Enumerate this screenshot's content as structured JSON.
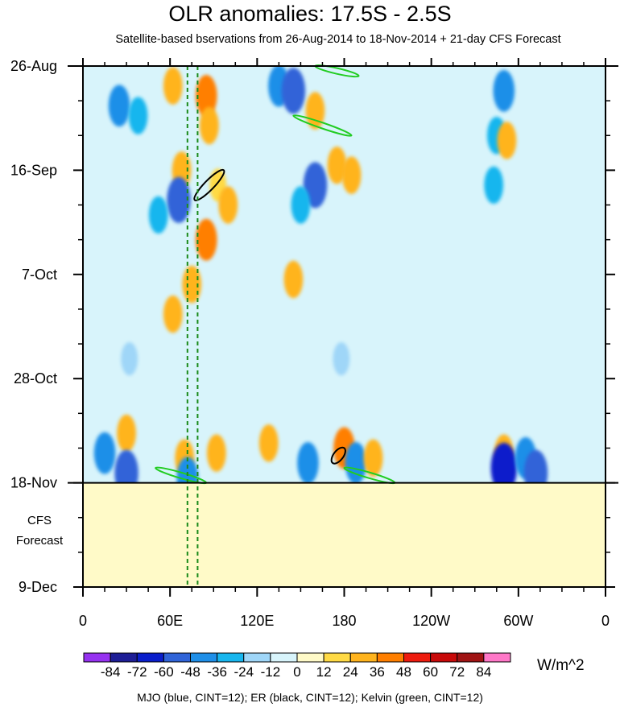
{
  "chart_data": {
    "type": "heatmap",
    "title": "OLR anomalies: 17.5S - 2.5S",
    "subtitle": "Satellite-based bservations from 26-Aug-2014 to 18-Nov-2014 + 21-day CFS Forecast",
    "x_tick_labels": [
      "0",
      "60E",
      "120E",
      "180",
      "120W",
      "60W",
      "0"
    ],
    "x_ticks_deg": [
      0,
      60,
      120,
      180,
      240,
      300,
      360
    ],
    "xlim": [
      0,
      360
    ],
    "y_tick_labels": [
      "26-Aug",
      "16-Sep",
      "7-Oct",
      "28-Oct",
      "18-Nov",
      "9-Dec"
    ],
    "y_ticks_day": [
      0,
      21,
      42,
      63,
      84,
      105
    ],
    "ylim": [
      0,
      105
    ],
    "observation_end_day": 84,
    "forecast_label_lines": [
      "CFS",
      "Forecast"
    ],
    "reference_lines_deg": [
      72,
      79
    ],
    "colorbar": {
      "levels": [
        "-84",
        "-72",
        "-60",
        "-48",
        "-36",
        "-24",
        "-12",
        "0",
        "12",
        "24",
        "36",
        "48",
        "60",
        "72",
        "84"
      ],
      "colors": [
        "#9632f0",
        "#1e1e96",
        "#0a1ecb",
        "#3064d8",
        "#1f8fe8",
        "#18b6ee",
        "#9fd6f8",
        "#d8f4fb",
        "#fffac8",
        "#ffda45",
        "#ffb41e",
        "#ff7f00",
        "#ee1c0f",
        "#c80a0a",
        "#a01414",
        "#ff78c8"
      ],
      "units": "W/m^2"
    },
    "anomaly_features": [
      {
        "lon": 25,
        "day": 8,
        "value": -36
      },
      {
        "lon": 38,
        "day": 10,
        "value": -24
      },
      {
        "lon": 30,
        "day": 74,
        "value": 24
      },
      {
        "lon": 15,
        "day": 78,
        "value": -36
      },
      {
        "lon": 30,
        "day": 82,
        "value": -48
      },
      {
        "lon": 62,
        "day": 4,
        "value": 24
      },
      {
        "lon": 85,
        "day": 6,
        "value": 36
      },
      {
        "lon": 87,
        "day": 12,
        "value": 24
      },
      {
        "lon": 68,
        "day": 21,
        "value": 24
      },
      {
        "lon": 66,
        "day": 27,
        "value": -48
      },
      {
        "lon": 93,
        "day": 24,
        "value": 12
      },
      {
        "lon": 100,
        "day": 28,
        "value": 24
      },
      {
        "lon": 85,
        "day": 35,
        "value": 36
      },
      {
        "lon": 75,
        "day": 44,
        "value": 24
      },
      {
        "lon": 62,
        "day": 50,
        "value": 24
      },
      {
        "lon": 70,
        "day": 79,
        "value": 24
      },
      {
        "lon": 72,
        "day": 83,
        "value": -36
      },
      {
        "lon": 92,
        "day": 78,
        "value": 24
      },
      {
        "lon": 135,
        "day": 4,
        "value": -36
      },
      {
        "lon": 145,
        "day": 5,
        "value": -48
      },
      {
        "lon": 160,
        "day": 9,
        "value": 24
      },
      {
        "lon": 160,
        "day": 24,
        "value": -48
      },
      {
        "lon": 175,
        "day": 20,
        "value": 24
      },
      {
        "lon": 185,
        "day": 22,
        "value": 24
      },
      {
        "lon": 150,
        "day": 28,
        "value": -24
      },
      {
        "lon": 145,
        "day": 43,
        "value": 24
      },
      {
        "lon": 128,
        "day": 76,
        "value": 24
      },
      {
        "lon": 155,
        "day": 80,
        "value": -36
      },
      {
        "lon": 180,
        "day": 77,
        "value": 36
      },
      {
        "lon": 188,
        "day": 80,
        "value": -36
      },
      {
        "lon": 200,
        "day": 79,
        "value": 24
      },
      {
        "lon": 178,
        "day": 59,
        "value": -12
      },
      {
        "lon": 290,
        "day": 5,
        "value": -36
      },
      {
        "lon": 285,
        "day": 14,
        "value": -24
      },
      {
        "lon": 292,
        "day": 15,
        "value": 24
      },
      {
        "lon": 283,
        "day": 24,
        "value": -24
      },
      {
        "lon": 290,
        "day": 78,
        "value": 24
      },
      {
        "lon": 290,
        "day": 81,
        "value": -60
      },
      {
        "lon": 305,
        "day": 79,
        "value": -36
      },
      {
        "lon": 312,
        "day": 82,
        "value": -48
      },
      {
        "lon": 32,
        "day": 59,
        "value": -12
      },
      {
        "lon": 52,
        "day": 30,
        "value": -24
      }
    ],
    "contours": {
      "ER_black": [
        {
          "lon": [
            77,
            97
          ],
          "day": [
            27,
            21
          ]
        },
        {
          "lon": [
            172,
            180
          ],
          "day": [
            80,
            77
          ]
        }
      ],
      "Kelvin_green": [
        {
          "lon": [
            160,
            190
          ],
          "day": [
            0,
            2
          ]
        },
        {
          "lon": [
            145,
            185
          ],
          "day": [
            10,
            14
          ]
        },
        {
          "lon": [
            50,
            85
          ],
          "day": [
            81,
            84
          ]
        },
        {
          "lon": [
            180,
            215
          ],
          "day": [
            81,
            84
          ]
        }
      ]
    }
  },
  "footer": {
    "units_label": "W/m^2",
    "contour_note": "MJO (blue, CINT=12); ER (black, CINT=12); Kelvin (green, CINT=12)"
  }
}
